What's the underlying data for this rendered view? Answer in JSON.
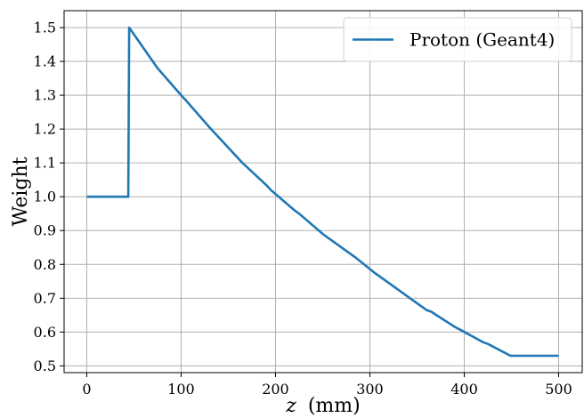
{
  "chart_data": {
    "type": "line",
    "xlabel_var": "z",
    "xlabel_unit": "(mm)",
    "ylabel": "Weight",
    "xlim": [
      -24,
      525
    ],
    "ylim": [
      0.48,
      1.55
    ],
    "xticks": [
      0,
      100,
      200,
      300,
      400,
      500
    ],
    "yticks": [
      0.5,
      0.6,
      0.7,
      0.8,
      0.9,
      1.0,
      1.1,
      1.2,
      1.3,
      1.4,
      1.5
    ],
    "ytick_labels": [
      "0.5",
      "0.6",
      "0.7",
      "0.8",
      "0.9",
      "1.0",
      "1.1",
      "1.2",
      "1.3",
      "1.4",
      "1.5"
    ],
    "grid": true,
    "legend_position": "top-right",
    "series": [
      {
        "name": "Proton (Geant4)",
        "color": "#1f77b4",
        "x": [
          0,
          44,
          45,
          70,
          75,
          100,
          105,
          130,
          135,
          160,
          165,
          190,
          195,
          220,
          225,
          250,
          255,
          280,
          285,
          305,
          310,
          335,
          340,
          360,
          365,
          390,
          395,
          420,
          425,
          449,
          500
        ],
        "y": [
          1.0,
          1.0,
          1.5,
          1.4,
          1.38,
          1.3,
          1.285,
          1.205,
          1.19,
          1.115,
          1.1,
          1.035,
          1.02,
          0.96,
          0.95,
          0.89,
          0.88,
          0.83,
          0.82,
          0.775,
          0.765,
          0.715,
          0.705,
          0.665,
          0.66,
          0.615,
          0.608,
          0.57,
          0.565,
          0.53,
          0.53
        ]
      }
    ]
  }
}
